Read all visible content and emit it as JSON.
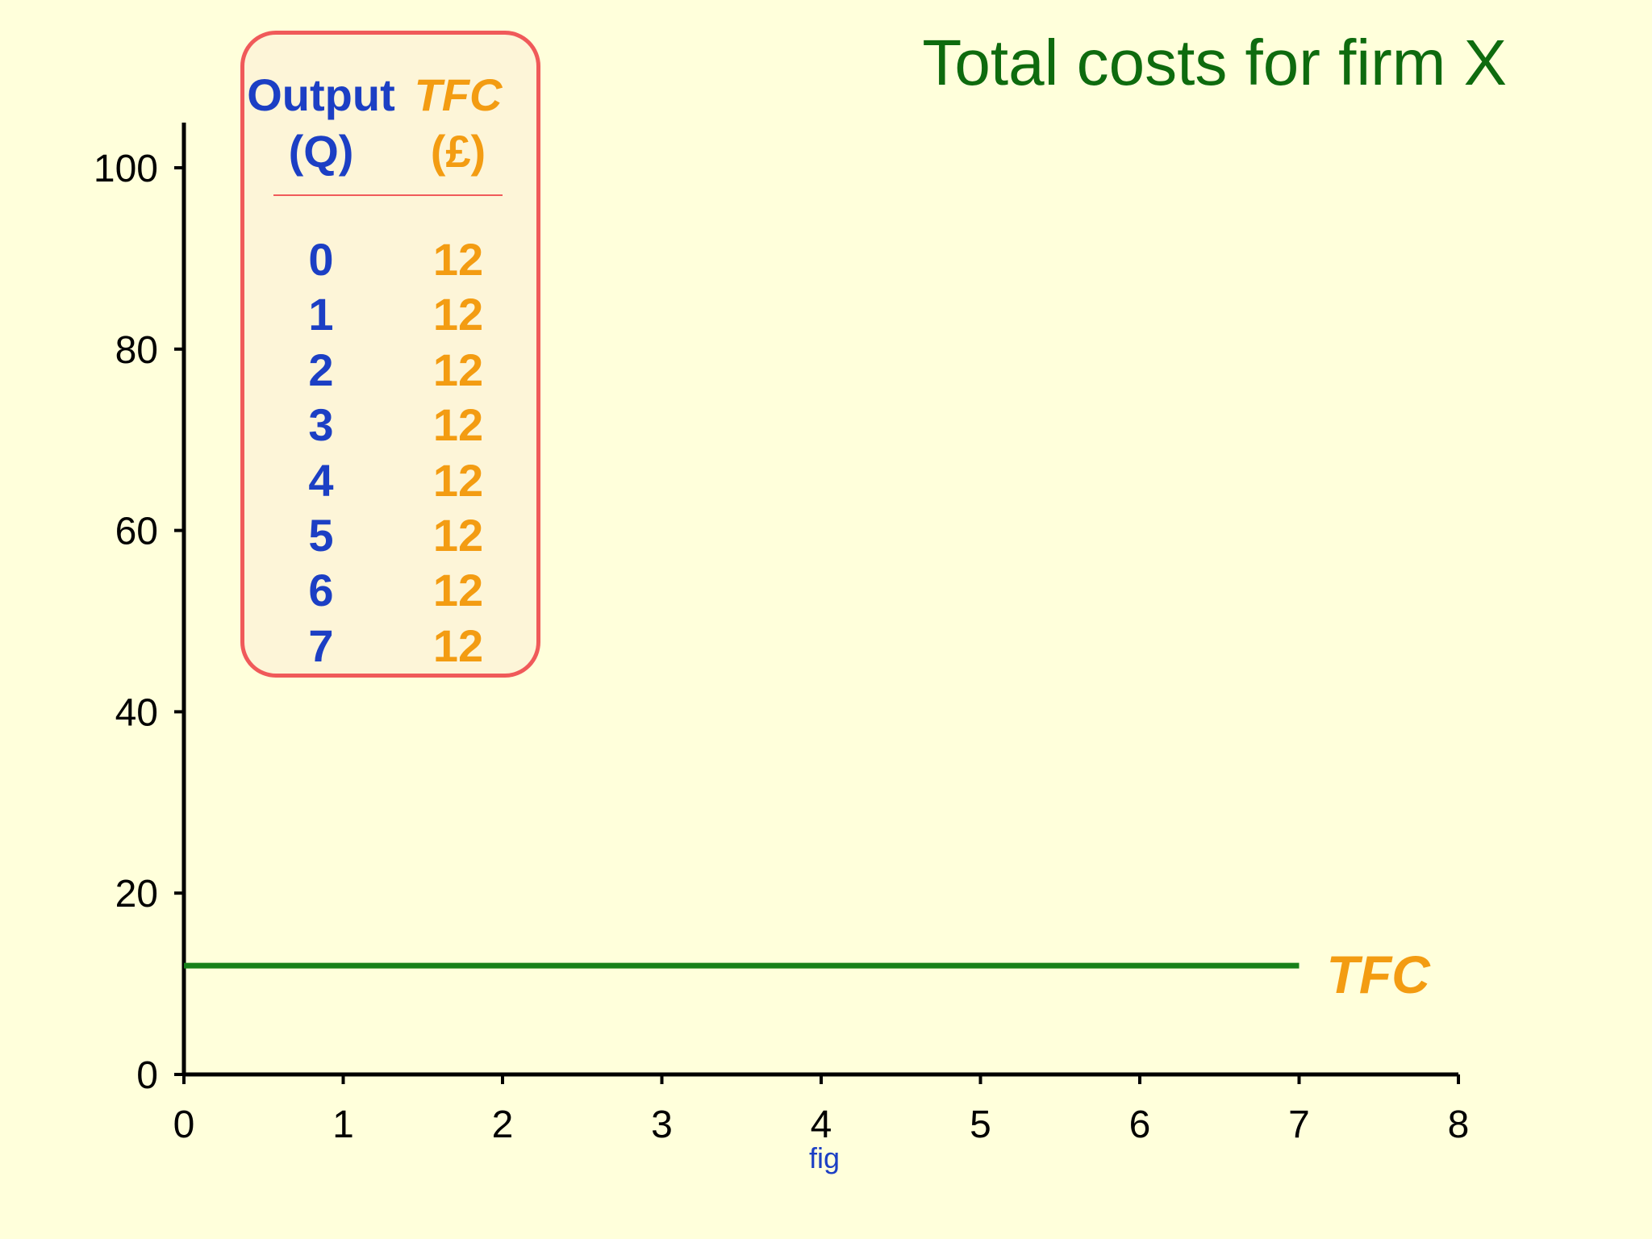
{
  "title": "Total costs for firm X",
  "table": {
    "headers": [
      {
        "line1": "Output",
        "line2": "(Q)"
      },
      {
        "line1": "TFC",
        "line2": "(£)"
      }
    ],
    "rows": [
      {
        "q": "0",
        "tfc": "12"
      },
      {
        "q": "1",
        "tfc": "12"
      },
      {
        "q": "2",
        "tfc": "12"
      },
      {
        "q": "3",
        "tfc": "12"
      },
      {
        "q": "4",
        "tfc": "12"
      },
      {
        "q": "5",
        "tfc": "12"
      },
      {
        "q": "6",
        "tfc": "12"
      },
      {
        "q": "7",
        "tfc": "12"
      }
    ]
  },
  "chart_data": {
    "type": "line",
    "title": "Total costs for firm X",
    "xlabel": "",
    "ylabel": "",
    "xlim": [
      0,
      8
    ],
    "ylim": [
      0,
      100
    ],
    "x_ticks": [
      0,
      1,
      2,
      3,
      4,
      5,
      6,
      7,
      8
    ],
    "y_ticks": [
      0,
      20,
      40,
      60,
      80,
      100
    ],
    "grid": false,
    "series": [
      {
        "name": "TFC",
        "x": [
          0,
          7
        ],
        "y": [
          12,
          12
        ],
        "color": "#17801a"
      }
    ],
    "annotations": [
      "fig"
    ]
  },
  "colors": {
    "background": "#ffffdb",
    "title": "#0e6b0e",
    "output_text": "#1c3fc4",
    "tfc_text": "#f39c12",
    "table_border": "#f05a5a",
    "line": "#17801a"
  }
}
